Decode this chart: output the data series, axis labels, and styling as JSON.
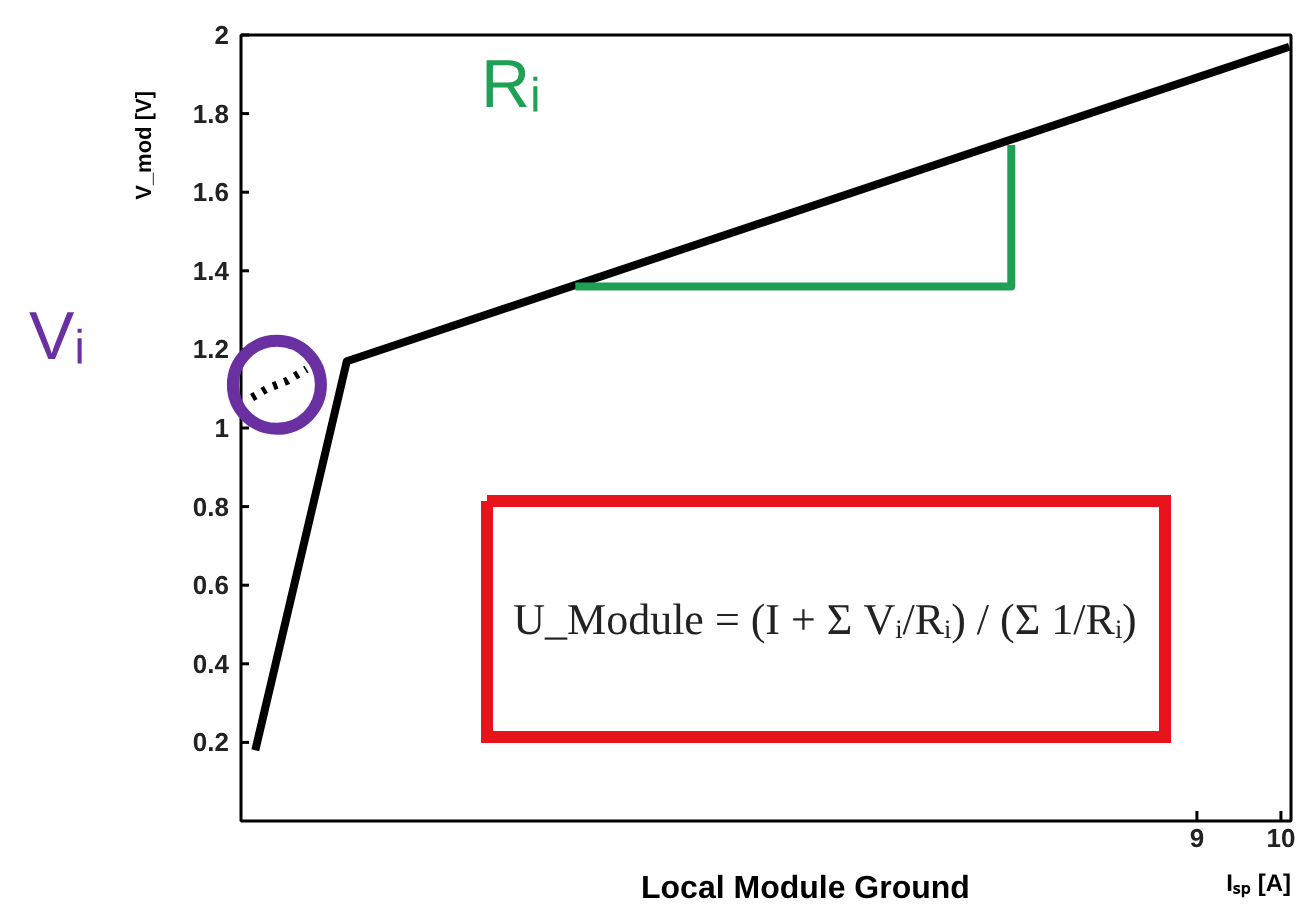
{
  "chart_data": {
    "type": "line",
    "xlabel": "Iₛₚ [A]",
    "ylabel": "V_mod [V]",
    "xlim": [
      -2.38,
      10.12
    ],
    "xticks": [
      9,
      10
    ],
    "ylim": [
      0,
      2
    ],
    "yticks": [
      0.2,
      0.4,
      0.6,
      0.8,
      1,
      1.2,
      1.4,
      1.6,
      1.8,
      2
    ],
    "grid": false,
    "marker": "none",
    "series": [
      {
        "color": "#000000",
        "x": [
          -2.21,
          -1.12,
          10.1
        ],
        "values": [
          0.18,
          1.17,
          1.97
        ],
        "line_style": "solid"
      },
      {
        "color": "#000000",
        "x": [
          -2.31,
          -2.07,
          -1.83,
          -1.6
        ],
        "values": [
          1.07,
          1.1,
          1.12,
          1.15
        ],
        "line_style": "dotted"
      },
      {
        "color": "#1fa055",
        "x": [
          1.6,
          6.79,
          6.79
        ],
        "values": [
          1.36,
          1.36,
          1.72
        ],
        "line_style": "solid"
      }
    ],
    "annotations": [
      "Rᵢ",
      "Vᵢ",
      "U_Module = (I + Σ Vᵢ/Rᵢ) / (Σ 1/Rᵢ)",
      "Local Module Ground"
    ]
  }
}
